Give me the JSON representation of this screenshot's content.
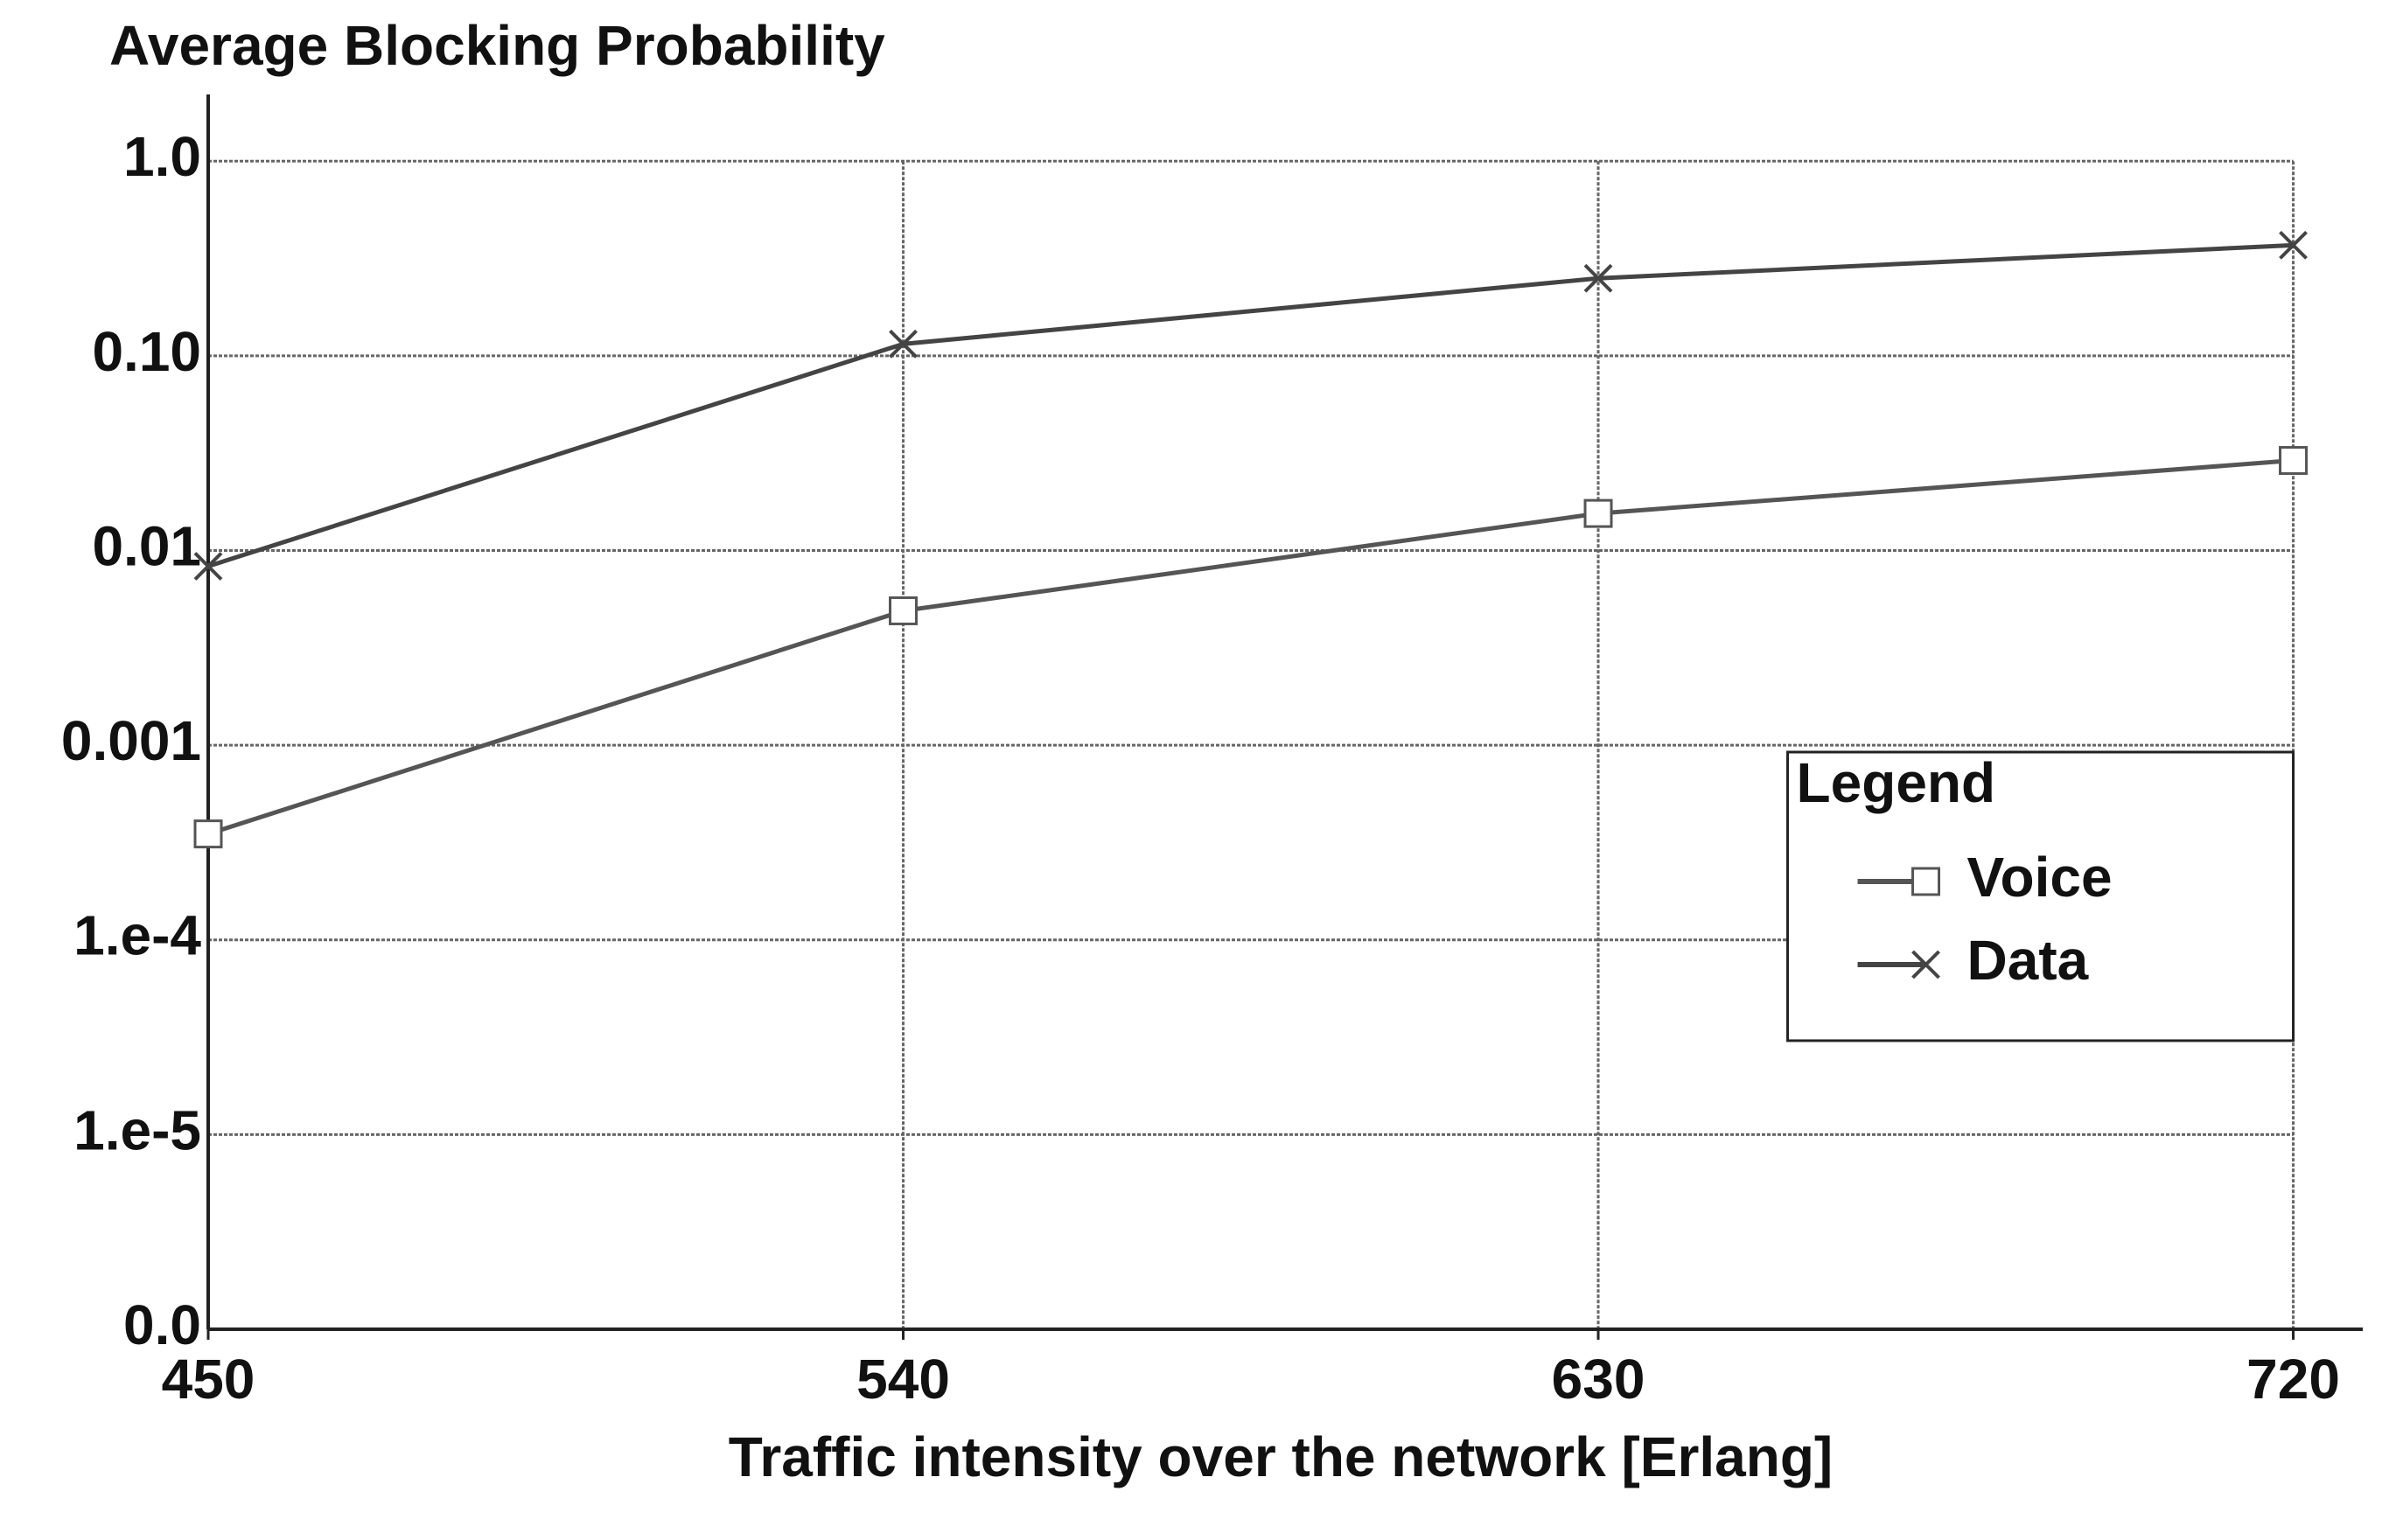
{
  "chart_data": {
    "type": "line",
    "title": "Average Blocking Probability",
    "x_label": "Traffic intensity over the network [Erlang]",
    "x": [
      450,
      540,
      630,
      720
    ],
    "xlim": [
      450,
      729
    ],
    "xticks": [
      450,
      540,
      630,
      720
    ],
    "ylim": [
      1e-06,
      2.2
    ],
    "yticks": [
      {
        "value": 1,
        "label": "1.0"
      },
      {
        "value": 0.1,
        "label": "0.10"
      },
      0.01,
      0.001,
      {
        "value": 0.0001,
        "label": "1.e-4"
      },
      {
        "value": 1e-05,
        "label": "1.e-5"
      },
      {
        "value": 1e-06,
        "label": "0.0"
      }
    ],
    "y_log_scale": true,
    "grid": true,
    "legend_title": "Legend",
    "legend_position": "right",
    "series": [
      {
        "name": "Voice",
        "color": "#555555",
        "marker": "square",
        "values": [
          0.00035,
          0.0049,
          0.0155,
          0.029
        ]
      },
      {
        "name": "Data",
        "color": "#444444",
        "marker": "x",
        "values": [
          0.0083,
          0.115,
          0.25,
          0.37
        ]
      }
    ]
  }
}
